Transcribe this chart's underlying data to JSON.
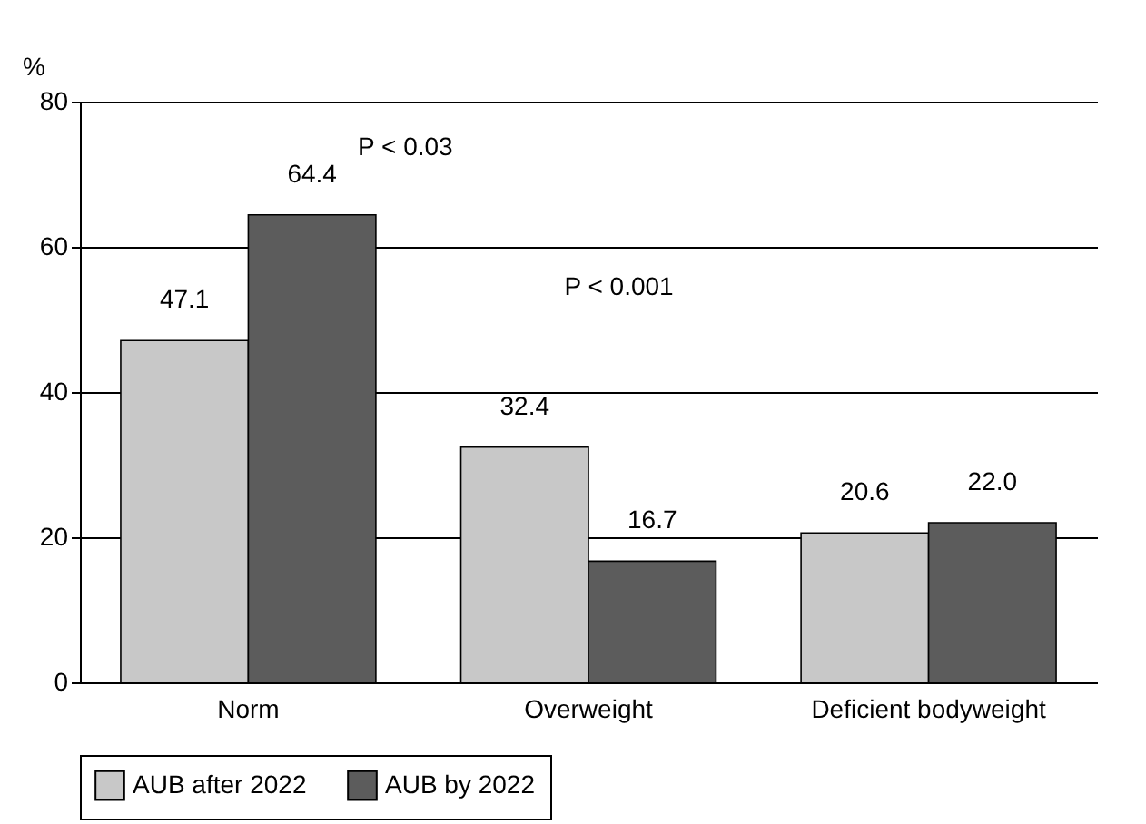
{
  "chart_data": {
    "type": "bar",
    "ylabel": "%",
    "categories": [
      "Norm",
      "Overweight",
      "Deficient bodyweight"
    ],
    "series": [
      {
        "name": "AUB after 2022",
        "color": "#c8c8c8",
        "values": [
          47.1,
          32.4,
          20.6
        ],
        "value_labels": [
          "47.1",
          "32.4",
          "20.6"
        ]
      },
      {
        "name": "AUB by 2022",
        "color": "#5c5c5c",
        "values": [
          64.4,
          16.7,
          22.0
        ],
        "value_labels": [
          "64.4",
          "16.7",
          "22.0"
        ]
      }
    ],
    "ylim": [
      0,
      80
    ],
    "yticks": [
      0,
      20,
      40,
      60,
      80
    ],
    "grid": "y",
    "legend": "bottom",
    "annotations": [
      "P < 0.03",
      "P < 0.001"
    ]
  }
}
